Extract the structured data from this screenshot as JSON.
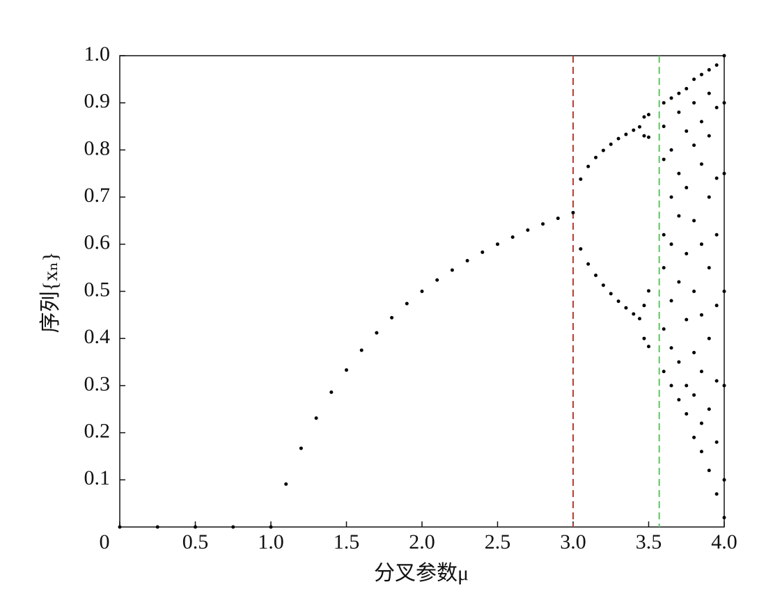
{
  "chart_data": {
    "type": "scatter",
    "x_label": "分叉参数μ",
    "y_label": "序列{xₙ}",
    "xlim": [
      0,
      4
    ],
    "ylim": [
      0,
      1
    ],
    "xticks": [
      0,
      0.5,
      {
        "value": 1,
        "label": "1.0"
      },
      1.5,
      {
        "value": 2,
        "label": "2.0"
      },
      2.5,
      {
        "value": 3,
        "label": "3.0"
      },
      3.5,
      {
        "value": 4,
        "label": "4.0"
      }
    ],
    "yticks": [
      0.1,
      0.2,
      0.3,
      0.4,
      0.5,
      0.6,
      0.7,
      0.8,
      0.9,
      {
        "value": 1,
        "label": "1.0"
      }
    ],
    "color": "#000000",
    "reference_lines": [
      {
        "x": 3,
        "color": "#c0392b"
      },
      {
        "x": 3.57,
        "color": "#4cd14c"
      }
    ],
    "x": [
      0,
      0.25,
      0.5,
      0.75,
      1,
      1.1,
      1.2,
      1.3,
      1.4,
      1.5,
      1.6,
      1.7,
      1.8,
      1.9,
      2.0,
      2.1,
      2.2,
      2.3,
      2.4,
      2.5,
      2.6,
      2.7,
      2.8,
      2.9,
      3.0,
      3.05,
      3.05,
      3.1,
      3.1,
      3.15,
      3.15,
      3.2,
      3.2,
      3.25,
      3.25,
      3.3,
      3.3,
      3.35,
      3.35,
      3.4,
      3.4,
      3.44,
      3.44,
      3.47,
      3.47,
      3.47,
      3.47,
      3.5,
      3.5,
      3.5,
      3.5,
      3.6,
      3.6,
      3.6,
      3.6,
      3.6,
      3.6,
      3.6,
      3.65,
      3.65,
      3.65,
      3.65,
      3.65,
      3.65,
      3.65,
      3.7,
      3.7,
      3.7,
      3.7,
      3.7,
      3.7,
      3.7,
      3.75,
      3.75,
      3.75,
      3.75,
      3.75,
      3.75,
      3.75,
      3.8,
      3.8,
      3.8,
      3.8,
      3.8,
      3.8,
      3.8,
      3.8,
      3.85,
      3.85,
      3.85,
      3.85,
      3.85,
      3.85,
      3.85,
      3.85,
      3.9,
      3.9,
      3.9,
      3.9,
      3.9,
      3.9,
      3.9,
      3.9,
      3.95,
      3.95,
      3.95,
      3.95,
      3.95,
      3.95,
      3.95,
      3.95,
      4.0,
      4.0,
      4.0,
      4.0,
      4.0,
      4.0,
      4.0
    ],
    "values": [
      0,
      0,
      0,
      0,
      0,
      0.091,
      0.167,
      0.231,
      0.286,
      0.333,
      0.375,
      0.412,
      0.444,
      0.474,
      0.5,
      0.524,
      0.545,
      0.565,
      0.583,
      0.6,
      0.615,
      0.63,
      0.643,
      0.655,
      0.667,
      0.738,
      0.59,
      0.765,
      0.558,
      0.784,
      0.534,
      0.799,
      0.513,
      0.812,
      0.495,
      0.824,
      0.479,
      0.833,
      0.465,
      0.842,
      0.452,
      0.849,
      0.442,
      0.87,
      0.83,
      0.4,
      0.47,
      0.875,
      0.827,
      0.383,
      0.501,
      0.9,
      0.85,
      0.78,
      0.55,
      0.42,
      0.33,
      0.62,
      0.91,
      0.8,
      0.7,
      0.48,
      0.38,
      0.3,
      0.6,
      0.92,
      0.88,
      0.75,
      0.66,
      0.52,
      0.35,
      0.27,
      0.93,
      0.84,
      0.72,
      0.58,
      0.44,
      0.3,
      0.24,
      0.95,
      0.9,
      0.81,
      0.65,
      0.5,
      0.37,
      0.19,
      0.28,
      0.96,
      0.86,
      0.77,
      0.6,
      0.45,
      0.33,
      0.16,
      0.22,
      0.97,
      0.92,
      0.83,
      0.7,
      0.55,
      0.4,
      0.25,
      0.12,
      0.98,
      0.89,
      0.74,
      0.62,
      0.47,
      0.31,
      0.18,
      0.07,
      1.0,
      0.9,
      0.75,
      0.5,
      0.3,
      0.1,
      0.02
    ]
  }
}
